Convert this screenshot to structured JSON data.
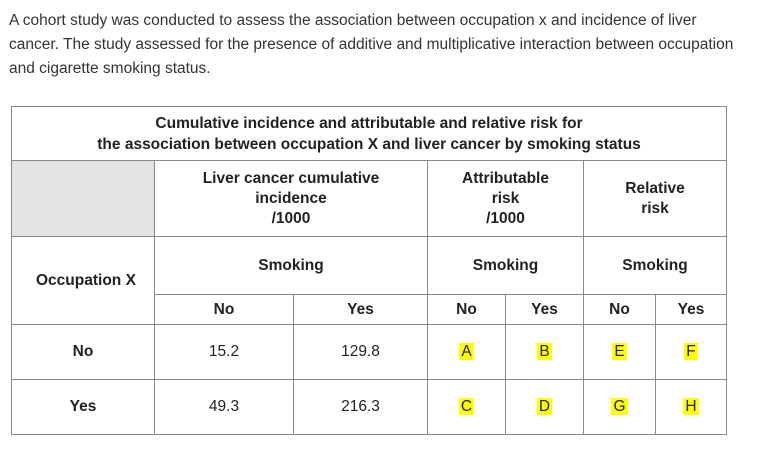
{
  "intro": "A cohort study was conducted to assess the association between occupation x and incidence of liver cancer.  The study assessed for the presence of additive and multiplicative interaction between occupation and cigarette smoking status.",
  "table": {
    "title_line1": "Cumulative incidence and attributable and relative risk for",
    "title_line2": "the association between occupation X and liver cancer by smoking status",
    "col_ci": [
      "Liver cancer cumulative",
      "incidence",
      "/1000"
    ],
    "col_ar": [
      "Attributable",
      "risk",
      "/1000"
    ],
    "col_rr": [
      "Relative",
      "risk"
    ],
    "smoking": "Smoking",
    "row_group_label": "Occupation X",
    "no": "No",
    "yes": "Yes",
    "rows": [
      {
        "label": "No",
        "ci_no": "15.2",
        "ci_yes": "129.8",
        "ar_no": "A",
        "ar_yes": "B",
        "rr_no": "E",
        "rr_yes": "F"
      },
      {
        "label": "Yes",
        "ci_no": "49.3",
        "ci_yes": "216.3",
        "ar_no": "C",
        "ar_yes": "D",
        "rr_no": "G",
        "rr_yes": "H"
      }
    ],
    "highlight_color": "#ffff00"
  }
}
